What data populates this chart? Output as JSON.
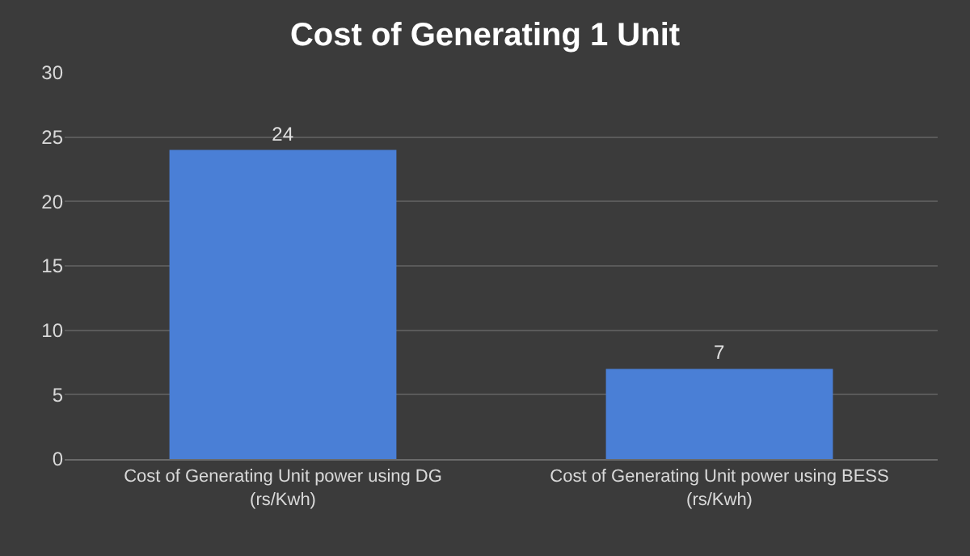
{
  "chart_data": {
    "type": "bar",
    "title": "Cost of Generating 1 Unit",
    "categories": [
      "Cost of Generating Unit power using DG (rs/Kwh)",
      "Cost of Generating Unit power using BESS (rs/Kwh)"
    ],
    "values": [
      24,
      7
    ],
    "color": "#4a7fd6",
    "ylim": [
      0,
      30
    ],
    "yticks": [
      0,
      5,
      10,
      15,
      20,
      25,
      30
    ],
    "grid": "y",
    "data_labels": true
  }
}
